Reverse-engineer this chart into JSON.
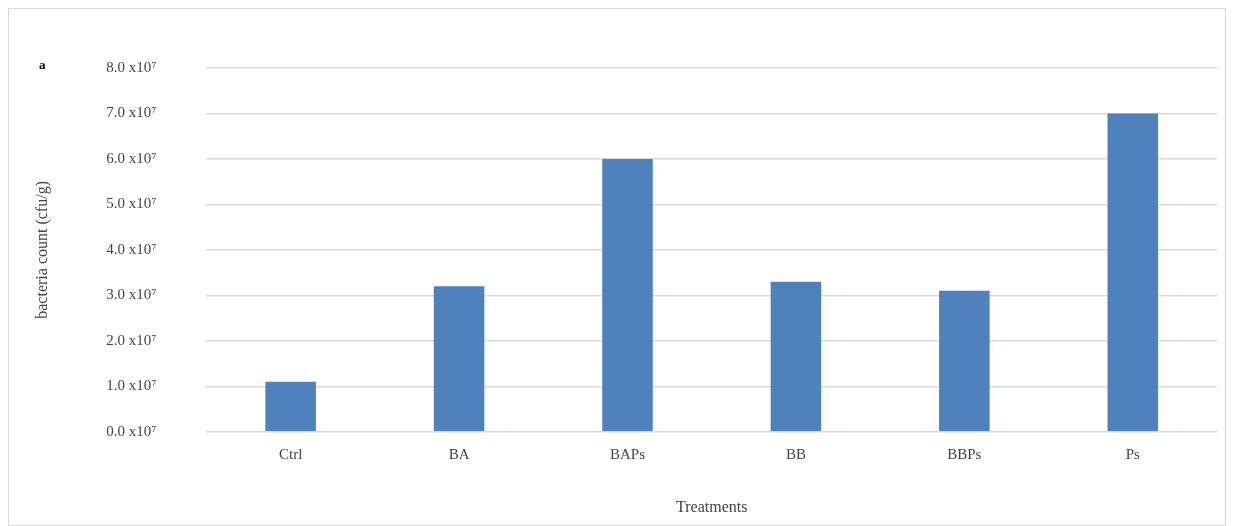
{
  "chart_data": {
    "type": "bar",
    "xlabel": "Treatments",
    "ylabel": "bacteria count (cfu/g)",
    "annotations": [
      "a"
    ],
    "categories": [
      "Ctrl",
      "BA",
      "BAPs",
      "BB",
      "BBPs",
      "Ps"
    ],
    "values": [
      11000000,
      32000000,
      60000000,
      33000000,
      31000000,
      70000000
    ],
    "color": "#4f81bd",
    "ylim": [
      0,
      80000000
    ],
    "yticks": [
      {
        "value": 0,
        "label": "0.0 x10⁷"
      },
      {
        "value": 10000000,
        "label": "1.0 x10⁷"
      },
      {
        "value": 20000000,
        "label": "2.0 x10⁷"
      },
      {
        "value": 30000000,
        "label": "3.0 x10⁷"
      },
      {
        "value": 40000000,
        "label": "4.0 x10⁷"
      },
      {
        "value": 50000000,
        "label": "5.0 x10⁷"
      },
      {
        "value": 60000000,
        "label": "6.0 x10⁷"
      },
      {
        "value": 70000000,
        "label": "7.0 x10⁷"
      },
      {
        "value": 80000000,
        "label": "8.0 x10⁷"
      }
    ],
    "grid": "y",
    "legend": false
  }
}
